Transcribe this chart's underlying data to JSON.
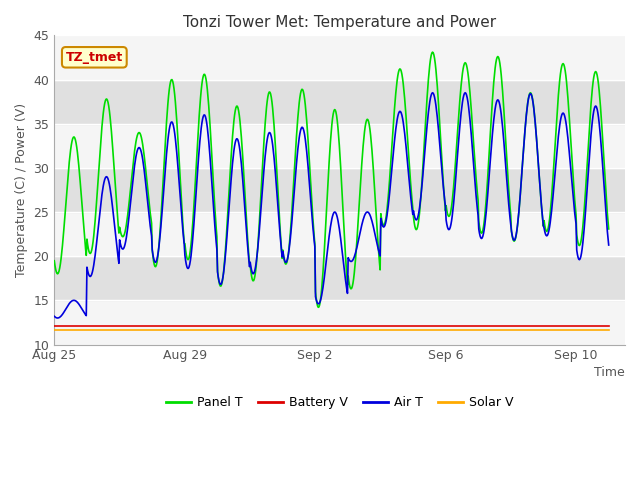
{
  "title": "Tonzi Tower Met: Temperature and Power",
  "ylabel": "Temperature (C) / Power (V)",
  "xlabel": "Time",
  "ylim": [
    10,
    45
  ],
  "tz_label": "TZ_tmet",
  "tick_labels_x": [
    "Aug 25",
    "Aug 29",
    "Sep 2",
    "Sep 6",
    "Sep 10"
  ],
  "tick_positions_x": [
    0,
    4,
    8,
    12,
    16
  ],
  "x_max": 17.5,
  "panel_t_color": "#00dd00",
  "battery_v_color": "#dd0000",
  "air_t_color": "#0000dd",
  "solar_v_color": "#ffaa00",
  "panel_t_label": "Panel T",
  "battery_v_label": "Battery V",
  "air_t_label": "Air T",
  "solar_v_label": "Solar V",
  "panel_t_peaks": [
    33.5,
    37.8,
    34.0,
    40.0,
    40.6,
    37.0,
    38.6,
    38.9,
    36.6,
    35.5,
    41.2,
    43.1,
    41.9,
    42.6,
    38.5,
    41.8,
    40.9,
    33.3
  ],
  "panel_t_troughs": [
    18.0,
    20.3,
    22.2,
    18.8,
    19.6,
    16.6,
    17.2,
    19.1,
    14.2,
    16.3,
    23.5,
    23.0,
    24.5,
    22.6,
    21.7,
    22.8,
    21.2,
    14.5
  ],
  "air_t_peaks": [
    15.0,
    29.0,
    32.3,
    35.2,
    36.0,
    33.3,
    34.0,
    34.6,
    25.0,
    25.0,
    36.4,
    38.5,
    38.5,
    37.7,
    38.4,
    36.2,
    37.0,
    28.5
  ],
  "air_t_troughs": [
    13.0,
    17.7,
    20.8,
    19.3,
    18.6,
    16.8,
    18.0,
    19.3,
    14.6,
    19.4,
    23.3,
    24.1,
    23.0,
    22.0,
    21.8,
    22.3,
    19.6,
    14.5
  ],
  "battery_v_value": 12.1,
  "solar_v_value": 11.6,
  "n_points_per_day": 48,
  "n_days": 17,
  "gray_band_color": "#e0e0e0",
  "white_band_color": "#f5f5f5",
  "title_fontsize": 11,
  "axis_label_fontsize": 9,
  "tick_fontsize": 9,
  "legend_fontsize": 9
}
